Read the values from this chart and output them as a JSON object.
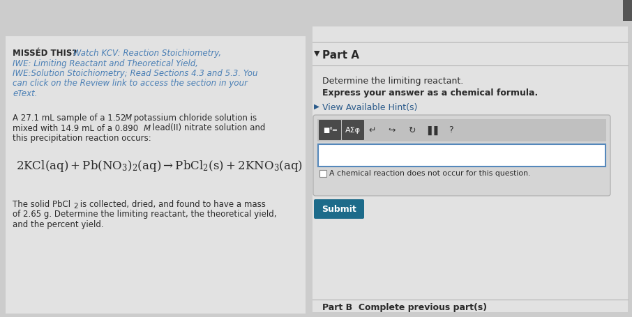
{
  "bg_color": "#cccccc",
  "left_panel_bg": "#e2e2e2",
  "right_panel_bg": "#e2e2e2",
  "missed_bold": "MISSÉD THIS?",
  "missed_link": " Watch KCV: Reaction Stoichiometry,\nIWE: Limiting Reactant and Theoretical Yield,\nIWE:Solution Stoichiometry; Read Sections 4.3 and 5.3. You\ncan click on the Review link to access the section in your\neText.",
  "link_color": "#4a7fb5",
  "text_color": "#2a2a2a",
  "hint_color": "#2a5a8a",
  "submit_btn_color": "#1d6b8a",
  "toolbar_dark": "#4a4a4a",
  "toolbar_light": "#c8c8c8",
  "input_border": "#5588bb",
  "part_a_label": "Part A",
  "determine_text": "Determine the limiting reactant.",
  "express_text": "Express your answer as a chemical formula.",
  "hint_text": "View Available Hint(s)",
  "checkbox_text": "A chemical reaction does not occur for this question.",
  "submit_text": "Submit",
  "part_b_text": "Part B  Complete previous part(s)"
}
